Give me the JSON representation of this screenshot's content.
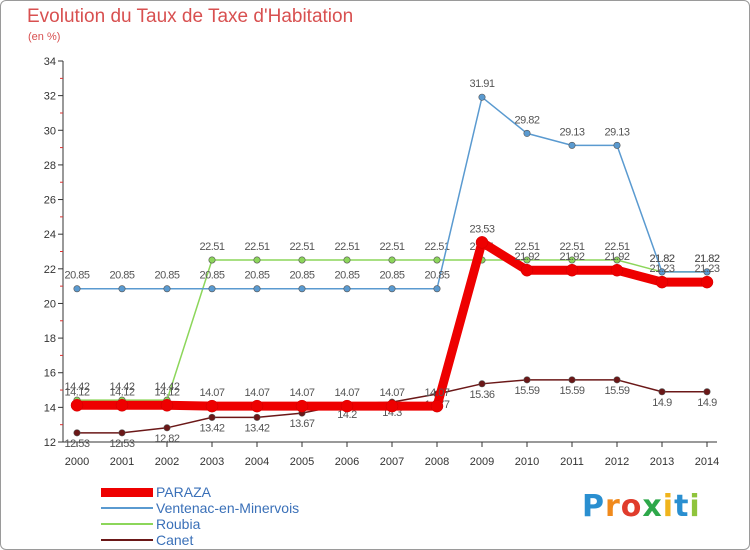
{
  "chart_data": {
    "type": "line",
    "title": "Evolution du Taux de Taxe d'Habitation",
    "subtitle": "(en %)",
    "xlabel": "",
    "ylabel": "",
    "categories": [
      "2000",
      "2001",
      "2002",
      "2003",
      "2004",
      "2005",
      "2006",
      "2007",
      "2008",
      "2009",
      "2010",
      "2011",
      "2012",
      "2013",
      "2014"
    ],
    "ylim": [
      12,
      34
    ],
    "yticks": [
      12,
      14,
      16,
      18,
      20,
      22,
      24,
      26,
      28,
      30,
      32,
      34
    ],
    "grid": false,
    "legend_position": "bottom-left",
    "series": [
      {
        "name": "PARAZA",
        "color": "#ee0000",
        "values": [
          14.12,
          14.12,
          14.12,
          14.07,
          14.07,
          14.07,
          14.07,
          14.07,
          14.07,
          23.53,
          21.92,
          21.92,
          21.92,
          21.23,
          21.23
        ],
        "labels": [
          "14.12",
          "14.12",
          "14.12",
          "14.07",
          "14.07",
          "14.07",
          "14.07",
          "14.07",
          "14.07",
          "23.53",
          "21.92",
          "21.92",
          "21.92",
          "21.23",
          "21.23"
        ]
      },
      {
        "name": "Ventenac-en-Minervois",
        "color": "#5a9ad0",
        "values": [
          20.85,
          20.85,
          20.85,
          20.85,
          20.85,
          20.85,
          20.85,
          20.85,
          20.85,
          31.91,
          29.82,
          29.13,
          29.13,
          21.82,
          21.82
        ],
        "labels": [
          "20.85",
          "20.85",
          "20.85",
          "20.85",
          "20.85",
          "20.85",
          "20.85",
          "20.85",
          "20.85",
          "31.91",
          "29.82",
          "29.13",
          "29.13",
          "21.82",
          "21.82"
        ]
      },
      {
        "name": "Roubia",
        "color": "#8cd65a",
        "values": [
          14.42,
          14.42,
          14.42,
          22.51,
          22.51,
          22.51,
          22.51,
          22.51,
          22.51,
          22.51,
          22.51,
          22.51,
          22.51,
          21.82,
          21.82
        ],
        "labels": [
          "14.42",
          "14.42",
          "14.42",
          "22.51",
          "22.51",
          "22.51",
          "22.51",
          "22.51",
          "22.51",
          "22.51",
          "22.51",
          "22.51",
          "22.51",
          "21.82",
          "21.82"
        ]
      },
      {
        "name": "Canet",
        "color": "#6b1818",
        "values": [
          12.53,
          12.53,
          12.82,
          13.42,
          13.42,
          13.67,
          14.2,
          14.3,
          14.77,
          15.36,
          15.59,
          15.59,
          15.59,
          14.9,
          14.9
        ],
        "labels": [
          "12.53",
          "12.53",
          "12.82",
          "13.42",
          "13.42",
          "13.67",
          "14.2",
          "14.3",
          "14.77",
          "15.36",
          "15.59",
          "15.59",
          "15.59",
          "14.9",
          "14.9"
        ]
      }
    ]
  },
  "logo": {
    "letters": [
      "P",
      "r",
      "o",
      "x",
      "i",
      "t",
      "i"
    ],
    "colors": [
      "#2a8fd0",
      "#f08a1c",
      "#e03c2c",
      "#2ea84a",
      "#f0b41c",
      "#2a8fd0",
      "#8fc43c"
    ]
  }
}
